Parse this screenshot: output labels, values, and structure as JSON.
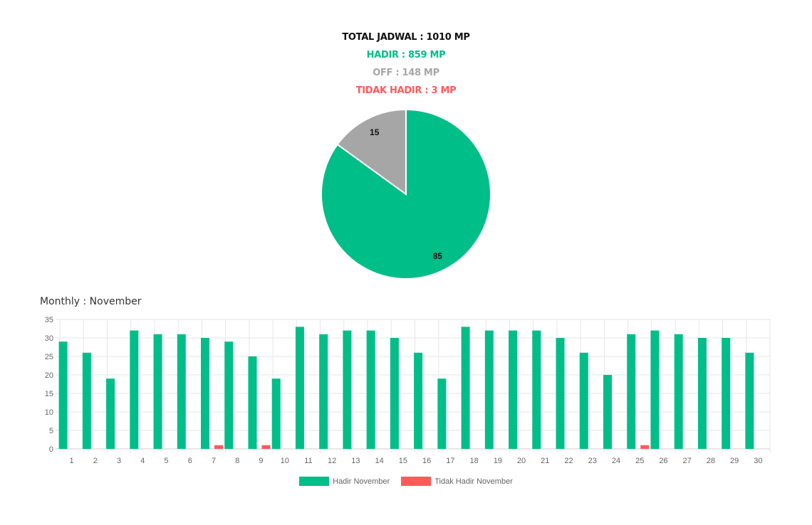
{
  "summary": {
    "total": "TOTAL JADWAL : 1010 MP",
    "hadir": "HADIR : 859 MP",
    "off": "OFF : 148 MP",
    "tidak_hadir": "TIDAK HADIR : 3 MP"
  },
  "colors": {
    "hadir": "#00be88",
    "off": "#a6a6a6",
    "tidak_hadir": "#ff5a5a",
    "total": "#111111"
  },
  "monthly_title": "Monthly : November",
  "chart_data": [
    {
      "type": "pie",
      "slices": [
        {
          "label": "HADIR",
          "value": 85,
          "display": "85",
          "color": "#00be88"
        },
        {
          "label": "OFF",
          "value": 15,
          "display": "15",
          "color": "#a6a6a6"
        }
      ],
      "legend": "none"
    },
    {
      "type": "bar",
      "title": "Monthly : November",
      "categories": [
        "1",
        "2",
        "3",
        "4",
        "5",
        "6",
        "7",
        "8",
        "9",
        "10",
        "11",
        "12",
        "13",
        "14",
        "15",
        "16",
        "17",
        "18",
        "19",
        "20",
        "21",
        "22",
        "23",
        "24",
        "25",
        "26",
        "27",
        "28",
        "29",
        "30"
      ],
      "series": [
        {
          "name": "Hadir November",
          "color": "#00be88",
          "values": [
            29,
            26,
            19,
            32,
            31,
            31,
            30,
            29,
            25,
            19,
            33,
            31,
            32,
            32,
            30,
            26,
            19,
            33,
            32,
            32,
            32,
            30,
            26,
            20,
            31,
            32,
            31,
            30,
            30,
            26
          ]
        },
        {
          "name": "Tidak Hadir November",
          "color": "#ff5a5a",
          "values": [
            0,
            0,
            0,
            0,
            0,
            0,
            1,
            0,
            1,
            0,
            0,
            0,
            0,
            0,
            0,
            0,
            0,
            0,
            0,
            0,
            0,
            0,
            0,
            0,
            1,
            0,
            0,
            0,
            0,
            0
          ]
        }
      ],
      "ylim": [
        0,
        35
      ],
      "yticks": [
        0,
        5,
        10,
        15,
        20,
        25,
        30,
        35
      ],
      "grid": true,
      "legend": "bottom"
    }
  ]
}
